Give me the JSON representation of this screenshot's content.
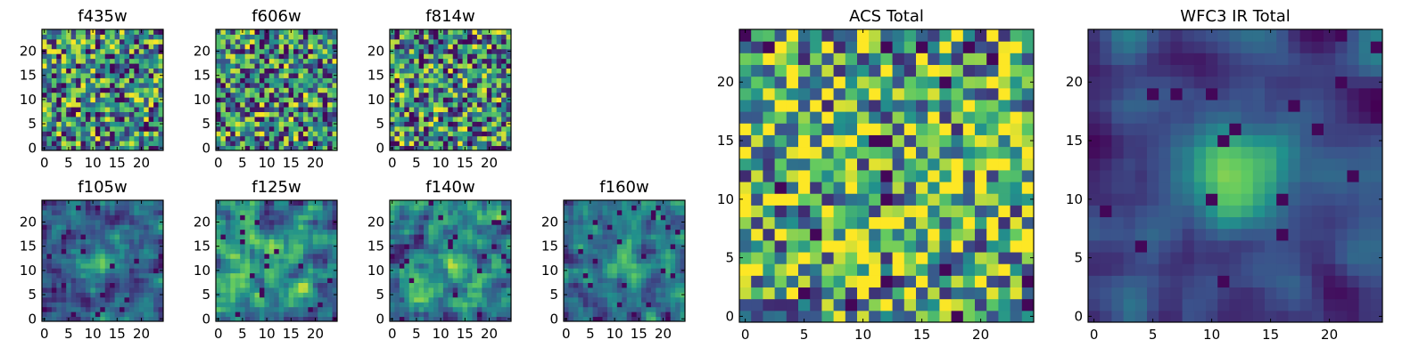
{
  "colormap": [
    "#440154",
    "#3b528b",
    "#21918c",
    "#5ec962",
    "#fde725"
  ],
  "chart_data": [
    {
      "type": "heatmap",
      "title": "f435w",
      "grid_size": 25,
      "xlim": [
        -0.5,
        24.5
      ],
      "ylim": [
        -0.5,
        24.5
      ],
      "xticks": [
        "0",
        "5",
        "10",
        "15",
        "20"
      ],
      "yticks": [
        "0",
        "5",
        "10",
        "15",
        "20"
      ],
      "seed": 11,
      "smooth": 0,
      "blob": 0.0,
      "dark": 0.035
    },
    {
      "type": "heatmap",
      "title": "f606w",
      "grid_size": 25,
      "xlim": [
        -0.5,
        24.5
      ],
      "ylim": [
        -0.5,
        24.5
      ],
      "xticks": [
        "0",
        "5",
        "10",
        "15",
        "20"
      ],
      "yticks": [
        "0",
        "5",
        "10",
        "15",
        "20"
      ],
      "seed": 23,
      "smooth": 0,
      "blob": 0.0,
      "dark": 0.035
    },
    {
      "type": "heatmap",
      "title": "f814w",
      "grid_size": 25,
      "xlim": [
        -0.5,
        24.5
      ],
      "ylim": [
        -0.5,
        24.5
      ],
      "xticks": [
        "0",
        "5",
        "10",
        "15",
        "20"
      ],
      "yticks": [
        "0",
        "5",
        "10",
        "15",
        "20"
      ],
      "seed": 37,
      "smooth": 0,
      "blob": 0.0,
      "dark": 0.04
    },
    {
      "type": "heatmap",
      "title": "f105w",
      "grid_size": 25,
      "xlim": [
        -0.5,
        24.5
      ],
      "ylim": [
        -0.5,
        24.5
      ],
      "xticks": [
        "0",
        "5",
        "10",
        "15",
        "20"
      ],
      "yticks": [
        "0",
        "5",
        "10",
        "15",
        "20"
      ],
      "seed": 41,
      "smooth": 1,
      "blob": 0.35,
      "dark": 0.03
    },
    {
      "type": "heatmap",
      "title": "f125w",
      "grid_size": 25,
      "xlim": [
        -0.5,
        24.5
      ],
      "ylim": [
        -0.5,
        24.5
      ],
      "xticks": [
        "0",
        "5",
        "10",
        "15",
        "20"
      ],
      "yticks": [
        "0",
        "5",
        "10",
        "15",
        "20"
      ],
      "seed": 53,
      "smooth": 1,
      "blob": 0.1,
      "dark": 0.03
    },
    {
      "type": "heatmap",
      "title": "f140w",
      "grid_size": 25,
      "xlim": [
        -0.5,
        24.5
      ],
      "ylim": [
        -0.5,
        24.5
      ],
      "xticks": [
        "0",
        "5",
        "10",
        "15",
        "20"
      ],
      "yticks": [
        "0",
        "5",
        "10",
        "15",
        "20"
      ],
      "seed": 67,
      "smooth": 1,
      "blob": 0.15,
      "dark": 0.03
    },
    {
      "type": "heatmap",
      "title": "f160w",
      "grid_size": 25,
      "xlim": [
        -0.5,
        24.5
      ],
      "ylim": [
        -0.5,
        24.5
      ],
      "xticks": [
        "0",
        "5",
        "10",
        "15",
        "20"
      ],
      "yticks": [
        "0",
        "5",
        "10",
        "15",
        "20"
      ],
      "seed": 79,
      "smooth": 1,
      "blob": 0.3,
      "dark": 0.03
    },
    {
      "type": "heatmap",
      "title": "ACS Total",
      "grid_size": 25,
      "xlim": [
        -0.5,
        24.5
      ],
      "ylim": [
        -0.5,
        24.5
      ],
      "xticks": [
        "0",
        "5",
        "10",
        "15",
        "20"
      ],
      "yticks": [
        "0",
        "5",
        "10",
        "15",
        "20"
      ],
      "seed": 97,
      "smooth": 0,
      "blob": 0.0,
      "dark": 0.02,
      "lift": 0.12
    },
    {
      "type": "heatmap",
      "title": "WFC3 IR Total",
      "grid_size": 25,
      "xlim": [
        -0.5,
        24.5
      ],
      "ylim": [
        -0.5,
        24.5
      ],
      "xticks": [
        "0",
        "5",
        "10",
        "15",
        "20"
      ],
      "yticks": [
        "0",
        "5",
        "10",
        "15",
        "20"
      ],
      "seed": 113,
      "smooth": 2,
      "blob": 0.55,
      "dark": 0.025
    }
  ]
}
